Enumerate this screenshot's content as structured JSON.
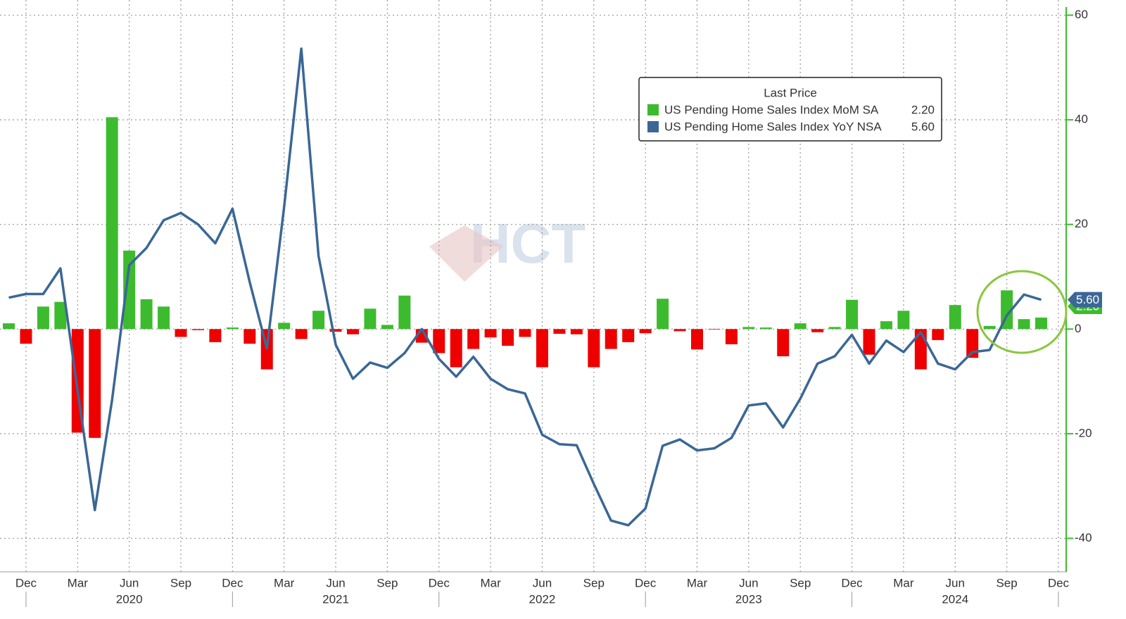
{
  "chart_data": {
    "type": "bar-line",
    "legend_title": "Last Price",
    "watermark": "HCT",
    "categories": [
      null,
      "Dec",
      null,
      null,
      "Mar",
      null,
      null,
      "Jun",
      null,
      null,
      "Sep",
      null,
      null,
      "Dec",
      null,
      null,
      "Mar",
      null,
      null,
      "Jun",
      null,
      null,
      "Sep",
      null,
      null,
      "Dec",
      null,
      null,
      "Mar",
      null,
      null,
      "Jun",
      null,
      null,
      "Sep",
      null,
      null,
      "Dec",
      null,
      null,
      "Mar",
      null,
      null,
      "Jun",
      null,
      null,
      "Sep",
      null,
      null,
      "Dec",
      null,
      null,
      "Mar",
      null,
      null,
      "Jun",
      null,
      null,
      "Sep",
      null,
      null,
      "Dec"
    ],
    "year_labels": [
      null,
      null,
      null,
      null,
      null,
      null,
      null,
      "2020",
      null,
      null,
      null,
      null,
      null,
      null,
      null,
      null,
      null,
      null,
      null,
      "2021",
      null,
      null,
      null,
      null,
      null,
      null,
      null,
      null,
      null,
      null,
      null,
      "2022",
      null,
      null,
      null,
      null,
      null,
      null,
      null,
      null,
      null,
      null,
      null,
      "2023",
      null,
      null,
      null,
      null,
      null,
      null,
      null,
      null,
      null,
      null,
      null,
      "2024",
      null,
      null,
      null,
      null,
      null,
      null
    ],
    "series": [
      {
        "name": "US Pending Home Sales Index MoM SA",
        "kind": "bar",
        "color": "#3dbb2e",
        "negative_color": "#ee0000",
        "last_label": "2.20",
        "values": [
          1.1,
          -2.8,
          4.3,
          5.2,
          -19.8,
          -20.8,
          40.5,
          15.0,
          5.7,
          4.3,
          -1.5,
          -0.2,
          -2.5,
          0.3,
          -2.8,
          -7.7,
          1.2,
          -1.9,
          3.5,
          -0.5,
          -1.0,
          3.9,
          0.8,
          6.4,
          -2.6,
          -4.6,
          -7.3,
          -3.8,
          -1.6,
          -3.2,
          -1.5,
          -7.3,
          -0.9,
          -1.0,
          -7.3,
          -3.8,
          -2.5,
          -0.8,
          5.8,
          -0.4,
          -3.9,
          -0.1,
          -2.9,
          0.4,
          0.3,
          -5.2,
          1.1,
          -0.6,
          0.4,
          5.6,
          -4.9,
          1.5,
          3.5,
          -7.7,
          -2.1,
          4.6,
          -5.5,
          0.6,
          7.4,
          1.9,
          2.2,
          null
        ]
      },
      {
        "name": "US Pending Home Sales Index YoY NSA",
        "kind": "line",
        "color": "#3b6796",
        "last_label": "5.60",
        "values": [
          6.0,
          6.7,
          6.7,
          11.6,
          -11.8,
          -34.6,
          -13.6,
          12.2,
          15.5,
          20.8,
          22.2,
          20.0,
          16.4,
          23.0,
          9.0,
          -3.7,
          23.3,
          53.6,
          14.0,
          -3.0,
          -9.5,
          -6.4,
          -7.4,
          -4.6,
          0,
          -5.7,
          -9.1,
          -5.3,
          -9.5,
          -11.5,
          -12.3,
          -20.2,
          -22.0,
          -22.2,
          -29.6,
          -36.6,
          -37.5,
          -34.3,
          -22.3,
          -21.1,
          -23.2,
          -22.8,
          -20.8,
          -14.6,
          -14.2,
          -18.8,
          -13.3,
          -6.6,
          -5.2,
          -1.1,
          -6.6,
          -2.2,
          -4.4,
          -0.6,
          -6.6,
          -7.7,
          -4.4,
          -4.0,
          2.6,
          6.6,
          5.6,
          null
        ]
      }
    ],
    "ylim": [
      -46.4,
      62.9
    ],
    "yticks": [
      60,
      40,
      20,
      0,
      -20,
      -40
    ],
    "grid": true,
    "axis_color": "#3dbb2e"
  }
}
